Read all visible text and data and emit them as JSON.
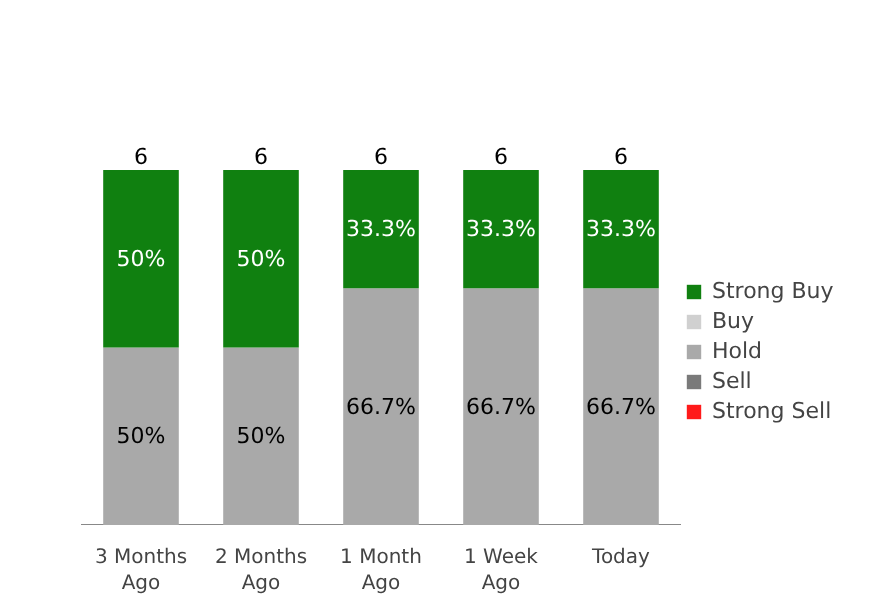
{
  "chart_data": {
    "type": "bar",
    "stacked": true,
    "categories": [
      "3 Months Ago",
      "2 Months Ago",
      "1 Month Ago",
      "1 Week Ago",
      "Today"
    ],
    "series": [
      {
        "name": "Strong Sell",
        "color": "#ff1a1a",
        "values": [
          null,
          null,
          null,
          null,
          null
        ]
      },
      {
        "name": "Sell",
        "color": "#7a7a7a",
        "values": [
          null,
          null,
          null,
          null,
          null
        ]
      },
      {
        "name": "Hold",
        "color": "#a9a9a9",
        "values": [
          50,
          50,
          66.7,
          66.7,
          66.7
        ],
        "value_labels": [
          "50%",
          "50%",
          "66.7%",
          "66.7%",
          "66.7%"
        ]
      },
      {
        "name": "Buy",
        "color": "#d0d0d0",
        "values": [
          null,
          null,
          null,
          null,
          null
        ]
      },
      {
        "name": "Strong Buy",
        "color": "#108010",
        "values": [
          50,
          50,
          33.3,
          33.3,
          33.3
        ],
        "value_labels": [
          "50%",
          "50%",
          "33.3%",
          "33.3%",
          "33.3%"
        ]
      }
    ],
    "annotations": [
      {
        "text": "6",
        "x": "3 Months Ago",
        "y": 100
      },
      {
        "text": "6",
        "x": "2 Months Ago",
        "y": 100
      },
      {
        "text": "6",
        "x": "1 Month Ago",
        "y": 100
      },
      {
        "text": "6",
        "x": "1 Week Ago",
        "y": 100
      },
      {
        "text": "6",
        "x": "Today",
        "y": 100
      }
    ],
    "legend": "right"
  }
}
